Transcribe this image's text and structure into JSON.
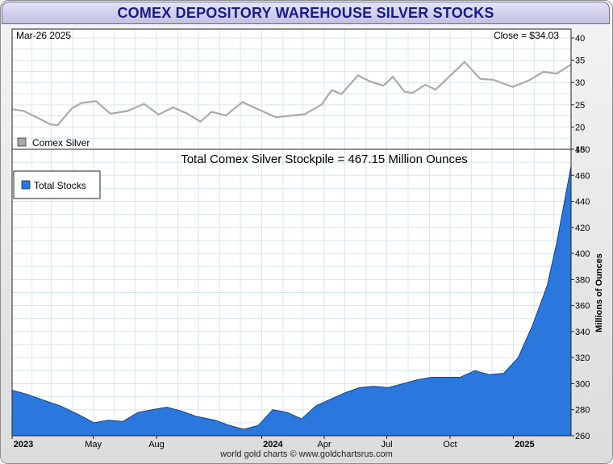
{
  "title": "COMEX DEPOSITORY WAREHOUSE SILVER STOCKS",
  "footer": "world gold charts © www.goldchartsrus.com",
  "colors": {
    "title_text": "#1a1a8c",
    "silver_line": "#aaaaaa",
    "stocks_fill": "#2a78dd",
    "grid": "#d5e6ee"
  },
  "chart_data": [
    {
      "type": "line",
      "date_label": "Mar-26  2025",
      "close_label": "Close = $34.03",
      "legend": "Comex Silver",
      "ylim": [
        15,
        42
      ],
      "yticks": [
        15,
        20,
        25,
        30,
        35,
        40
      ],
      "grid": true,
      "legend_position": "bottom-left",
      "x": [
        "2023-01-03",
        "2023-01-20",
        "2023-02-10",
        "2023-02-28",
        "2023-03-10",
        "2023-03-31",
        "2023-04-14",
        "2023-05-05",
        "2023-05-26",
        "2023-06-20",
        "2023-07-14",
        "2023-08-04",
        "2023-08-25",
        "2023-09-15",
        "2023-10-04",
        "2023-10-20",
        "2023-11-10",
        "2023-12-04",
        "2023-12-29",
        "2024-01-22",
        "2024-02-14",
        "2024-03-04",
        "2024-03-28",
        "2024-04-12",
        "2024-04-26",
        "2024-05-20",
        "2024-06-07",
        "2024-06-26",
        "2024-07-10",
        "2024-07-26",
        "2024-08-07",
        "2024-08-26",
        "2024-09-10",
        "2024-10-01",
        "2024-10-22",
        "2024-11-14",
        "2024-12-03",
        "2024-12-31",
        "2025-01-24",
        "2025-02-14",
        "2025-03-05",
        "2025-03-26"
      ],
      "values": [
        24.0,
        23.6,
        22.0,
        20.6,
        20.4,
        24.2,
        25.4,
        25.8,
        23.0,
        23.6,
        25.2,
        22.8,
        24.4,
        23.0,
        21.2,
        23.4,
        22.6,
        25.6,
        23.8,
        22.2,
        22.6,
        22.9,
        25.0,
        28.3,
        27.4,
        31.6,
        30.2,
        29.3,
        31.3,
        28.0,
        27.6,
        29.5,
        28.4,
        31.5,
        34.6,
        30.8,
        30.6,
        29.0,
        30.5,
        32.4,
        32.0,
        34.03
      ]
    },
    {
      "type": "area",
      "title": "Total Comex Silver Stockpile = 467.15 Million Ounces",
      "legend": "Total Stocks",
      "ylabel": "Millions of Ounces",
      "ylim": [
        260,
        480
      ],
      "yticks": [
        260,
        280,
        300,
        320,
        340,
        360,
        380,
        400,
        420,
        440,
        460,
        480
      ],
      "grid": true,
      "legend_position": "top-left",
      "x": [
        "2023-01-03",
        "2023-01-24",
        "2023-02-14",
        "2023-03-14",
        "2023-04-11",
        "2023-05-02",
        "2023-05-23",
        "2023-06-13",
        "2023-07-05",
        "2023-07-26",
        "2023-08-16",
        "2023-09-06",
        "2023-09-27",
        "2023-10-25",
        "2023-11-15",
        "2023-12-06",
        "2023-12-27",
        "2024-01-17",
        "2024-02-07",
        "2024-02-28",
        "2024-03-20",
        "2024-04-10",
        "2024-05-01",
        "2024-05-22",
        "2024-06-12",
        "2024-07-03",
        "2024-07-24",
        "2024-08-14",
        "2024-09-04",
        "2024-09-25",
        "2024-10-16",
        "2024-11-06",
        "2024-11-27",
        "2024-12-18",
        "2025-01-08",
        "2025-01-29",
        "2025-02-19",
        "2025-03-05",
        "2025-03-26"
      ],
      "values": [
        295,
        292,
        288,
        283,
        276,
        270,
        272,
        271,
        278,
        280,
        282,
        279,
        275,
        272,
        268,
        265,
        268,
        280,
        278,
        273,
        283,
        288,
        293,
        297,
        298,
        297,
        300,
        303,
        305,
        305,
        305,
        310,
        307,
        308,
        320,
        345,
        375,
        408,
        467.15
      ]
    }
  ],
  "x_axis": {
    "labels": [
      {
        "text": "2023",
        "date": "2023-01-01",
        "bold": true
      },
      {
        "text": "May",
        "date": "2023-05-01",
        "bold": false
      },
      {
        "text": "Aug",
        "date": "2023-08-01",
        "bold": false
      },
      {
        "text": "2024",
        "date": "2024-01-01",
        "bold": true
      },
      {
        "text": "Apr",
        "date": "2024-04-01",
        "bold": false
      },
      {
        "text": "Jul",
        "date": "2024-07-01",
        "bold": false
      },
      {
        "text": "Oct",
        "date": "2024-10-01",
        "bold": false
      },
      {
        "text": "2025",
        "date": "2025-01-01",
        "bold": true
      }
    ]
  }
}
